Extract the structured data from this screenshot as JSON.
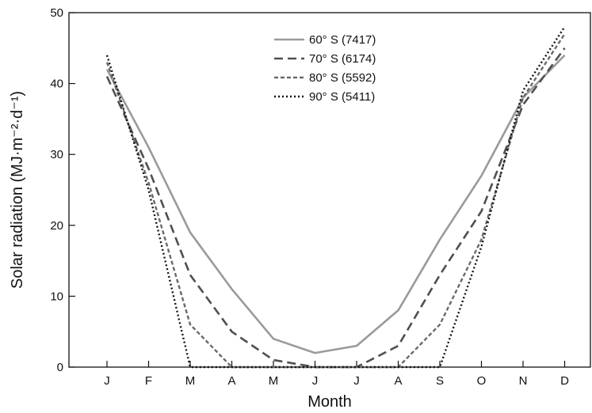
{
  "chart_data": {
    "type": "line",
    "title": "",
    "xlabel": "Month",
    "ylabel": "Solar radiation (MJ·m⁻²·d⁻¹)",
    "categories": [
      "J",
      "F",
      "M",
      "A",
      "M",
      "J",
      "J",
      "A",
      "S",
      "O",
      "N",
      "D"
    ],
    "ylim": [
      0,
      50
    ],
    "yticks": [
      "0",
      "10",
      "20",
      "30",
      "40",
      "50"
    ],
    "grid": false,
    "legend_position": "top-center",
    "series": [
      {
        "name": "60° S (7417)",
        "color": "#9a9a9a",
        "dash": "solid",
        "values": [
          42,
          31,
          19,
          11,
          4,
          2,
          3,
          8,
          18,
          27,
          38,
          44
        ]
      },
      {
        "name": "70° S (6174)",
        "color": "#505050",
        "dash": "long-dash",
        "values": [
          41,
          28,
          13,
          5,
          1,
          0,
          0,
          3,
          13,
          22,
          37,
          45
        ]
      },
      {
        "name": "80° S (5592)",
        "color": "#6a6a6a",
        "dash": "short-dash",
        "values": [
          43,
          26,
          6,
          0,
          0,
          0,
          0,
          0,
          6,
          18,
          38,
          47
        ]
      },
      {
        "name": "90° S (5411)",
        "color": "#111111",
        "dash": "dotted",
        "values": [
          44,
          25,
          0,
          0,
          0,
          0,
          0,
          0,
          0,
          17,
          39,
          48
        ]
      }
    ]
  }
}
